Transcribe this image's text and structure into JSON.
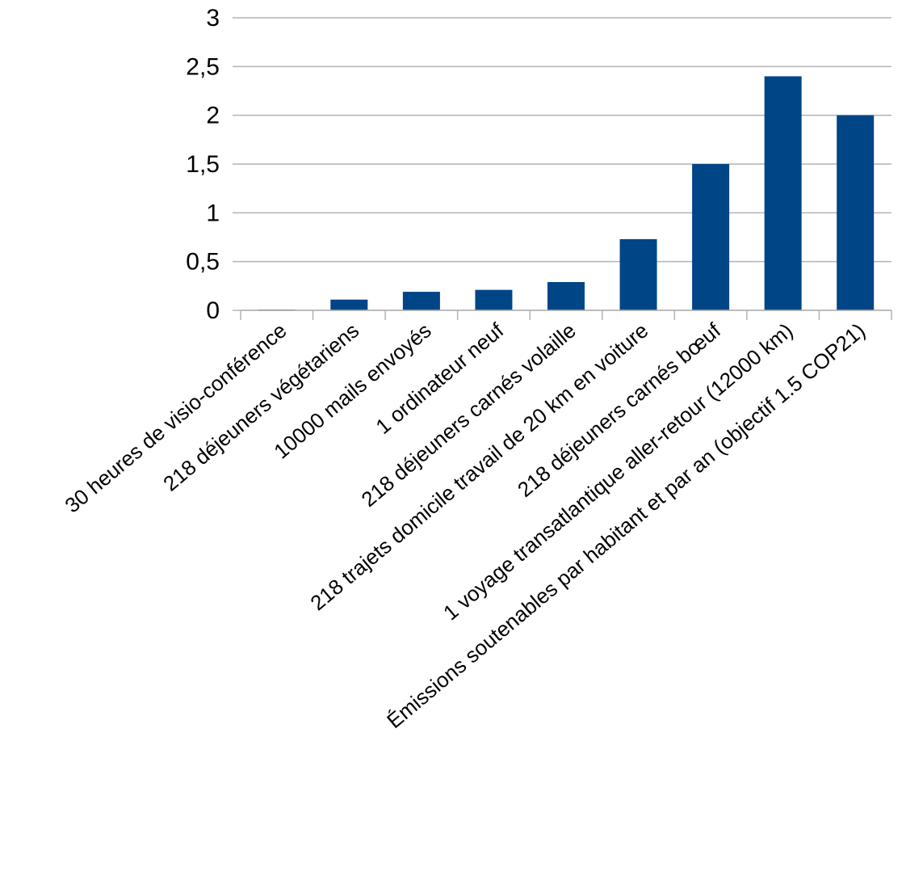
{
  "chart_data": {
    "type": "bar",
    "title": "",
    "xlabel": "",
    "ylabel": "",
    "categories": [
      "30 heures de visio-conférence",
      "218 déjeuners végétariens",
      "10000 mails envoyés",
      "1 ordinateur neuf",
      "218 déjeuners carnés volaille",
      "218 trajets domicile travail de 20 km en voiture",
      "218 déjeuners carnés bœuf",
      "1 voyage transatlantique aller-retour (12000 km)",
      "Émissions soutenables par habitant et par an (objectif 1.5 COP21)"
    ],
    "values": [
      0.005,
      0.11,
      0.19,
      0.21,
      0.29,
      0.73,
      1.5,
      2.4,
      2.0
    ],
    "ylim": [
      0,
      3
    ],
    "yticks": [
      0,
      0.5,
      1,
      1.5,
      2,
      2.5,
      3
    ],
    "ytick_labels": [
      "0",
      "0,5",
      "1",
      "1,5",
      "2",
      "2,5",
      "3"
    ],
    "grid": true,
    "legend": "none",
    "colors": {
      "bar": "#004586",
      "grid": "#b3b3b3",
      "text": "#000000"
    }
  }
}
